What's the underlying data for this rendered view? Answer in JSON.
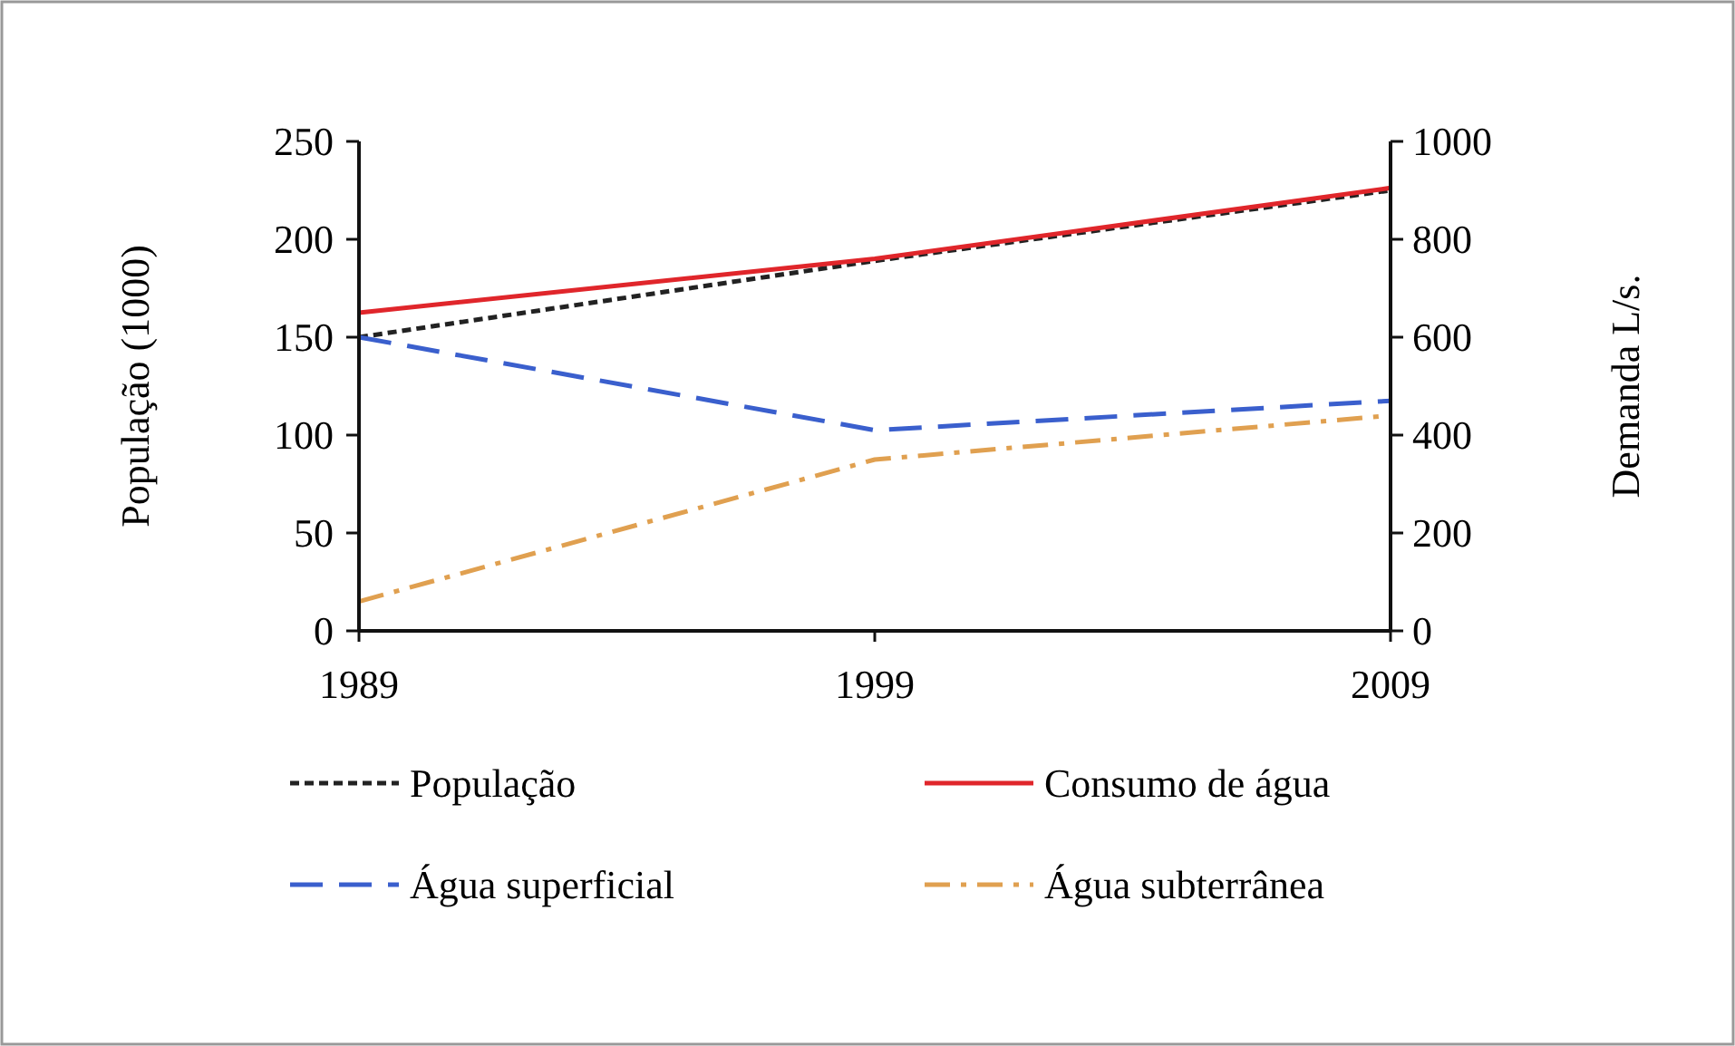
{
  "chart_data": {
    "type": "line",
    "x": [
      1989,
      1999,
      2009
    ],
    "xlim": [
      1989,
      2009
    ],
    "xticks": [
      1989,
      1999,
      2009
    ],
    "ylabel": "População (1000)",
    "y2label": "Demanda L/s.",
    "ylim": [
      0,
      250
    ],
    "yticks": [
      0,
      50,
      100,
      150,
      200,
      250
    ],
    "y2lim": [
      0,
      1000
    ],
    "y2ticks": [
      0,
      200,
      400,
      600,
      800,
      1000
    ],
    "grid": false,
    "legend": "bottom",
    "marker": "none",
    "series": [
      {
        "name": "População",
        "color": "#222222",
        "line_style": "dotted",
        "values": [
          150,
          189,
          225
        ]
      },
      {
        "name": "Consumo de água",
        "color": "#e0262b",
        "line_style": "solid",
        "axis": "y2",
        "values": [
          650,
          760,
          905
        ]
      },
      {
        "name": "Água superficial",
        "color": "#3a5fcd",
        "line_style": "dashed",
        "axis": "y2",
        "values": [
          600,
          410,
          470
        ]
      },
      {
        "name": "Água subterrânea",
        "color": "#e0a050",
        "line_style": "dashdot",
        "axis": "y2",
        "values": [
          60,
          350,
          440
        ]
      }
    ]
  }
}
